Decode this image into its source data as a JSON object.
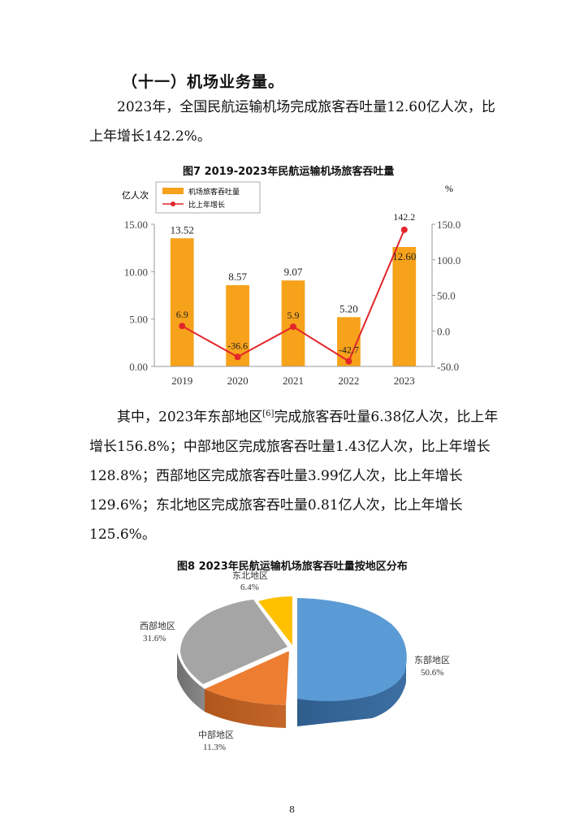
{
  "heading": "（十一）机场业务量。",
  "para1": "2023年，全国民航运输机场完成旅客吞吐量12.60亿人次，比上年增长142.2%。",
  "para2": {
    "before": "其中，2023年东部地区",
    "footnote": "[6]",
    "after": "完成旅客吞吐量6.38亿人次，比上年增长156.8%；中部地区完成旅客吞吐量1.43亿人次，比上年增长128.8%；西部地区完成旅客吞吐量3.99亿人次，比上年增长129.6%；东北地区完成旅客吞吐量0.81亿人次，比上年增长125.6%。"
  },
  "page_number": "8",
  "chart_data": [
    {
      "type": "bar",
      "title": "图7 2019-2023年民航运输机场旅客吞吐量",
      "ylabel_left": "亿人次",
      "ylabel_right": "%",
      "categories": [
        "2019",
        "2020",
        "2021",
        "2022",
        "2023"
      ],
      "y_left_ticks": [
        "0.00",
        "5.00",
        "10.00",
        "15.00"
      ],
      "y_right_ticks": [
        "-50.0",
        "0.0",
        "50.0",
        "100.0",
        "150.0"
      ],
      "ylim_left": [
        0,
        15
      ],
      "ylim_right": [
        -50,
        150
      ],
      "legend_position": "top-left",
      "colors": {
        "bars": "#f7a21b",
        "line": "#e2262b"
      },
      "series": [
        {
          "name": "机场旅客吞吐量",
          "kind": "bar",
          "axis": "left",
          "values": [
            13.52,
            8.57,
            9.07,
            5.2,
            12.6
          ],
          "labels": [
            "13.52",
            "8.57",
            "9.07",
            "5.20",
            "12.60"
          ]
        },
        {
          "name": "比上年增长",
          "kind": "line",
          "axis": "right",
          "values": [
            6.9,
            -36.6,
            5.9,
            -42.7,
            142.2
          ],
          "labels": [
            "6.9",
            "-36.6",
            "5.9",
            "-42.7",
            "142.2"
          ]
        }
      ]
    },
    {
      "type": "pie",
      "title": "图8  2023年民航运输机场旅客吞吐量按地区分布",
      "slices": [
        {
          "name": "东部地区",
          "value": 50.6,
          "label": "50.6%",
          "color": "#5b9bd5"
        },
        {
          "name": "中部地区",
          "value": 11.3,
          "label": "11.3%",
          "color": "#ed7d31"
        },
        {
          "name": "西部地区",
          "value": 31.6,
          "label": "31.6%",
          "color": "#a5a5a5"
        },
        {
          "name": "东北地区",
          "value": 6.4,
          "label": "6.4%",
          "color": "#ffc000"
        }
      ]
    }
  ]
}
